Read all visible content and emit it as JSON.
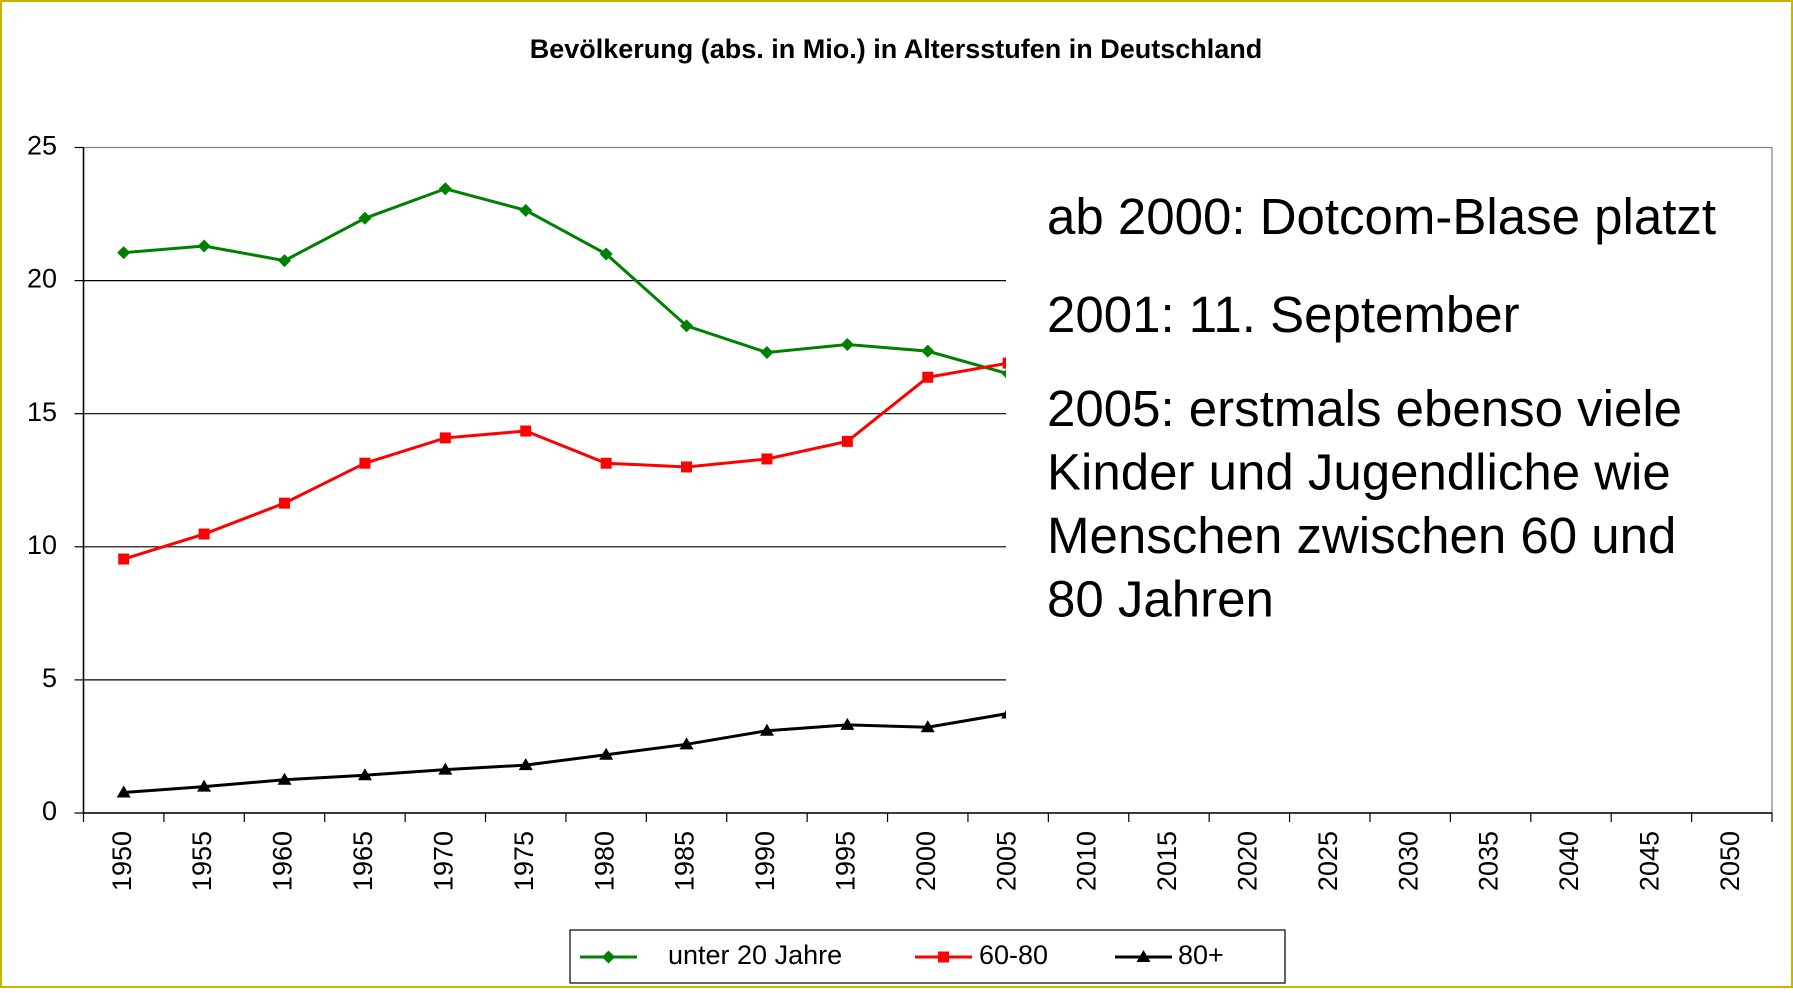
{
  "chart_data": {
    "type": "line",
    "title": "Bevölkerung (abs. in Mio.) in Altersstufen in Deutschland",
    "categories": [
      "1950",
      "1955",
      "1960",
      "1965",
      "1970",
      "1975",
      "1980",
      "1985",
      "1990",
      "1995",
      "2000",
      "2005",
      "2010",
      "2015",
      "2020",
      "2025",
      "2030",
      "2035",
      "2040",
      "2045",
      "2050"
    ],
    "series": [
      {
        "name": "unter 20 Jahre",
        "color": "#008000",
        "marker": "diamond",
        "values": [
          21.05,
          21.3,
          20.75,
          22.34,
          23.45,
          22.64,
          21.0,
          18.3,
          17.3,
          17.6,
          17.35,
          16.5,
          null,
          null,
          null,
          null,
          null,
          null,
          null,
          null,
          null
        ]
      },
      {
        "name": "60-80",
        "color": "#ff0000",
        "marker": "square",
        "values": [
          9.54,
          10.48,
          11.64,
          13.14,
          14.09,
          14.35,
          13.14,
          13.0,
          13.3,
          13.96,
          16.37,
          16.9,
          null,
          null,
          null,
          null,
          null,
          null,
          null,
          null,
          null
        ]
      },
      {
        "name": "80+",
        "color": "#000000",
        "marker": "triangle",
        "values": [
          0.77,
          0.99,
          1.25,
          1.42,
          1.63,
          1.8,
          2.19,
          2.58,
          3.09,
          3.31,
          3.22,
          3.74,
          null,
          null,
          null,
          null,
          null,
          null,
          null,
          null,
          null
        ]
      }
    ],
    "ylim": [
      0,
      25
    ],
    "yticks": [
      0,
      5,
      10,
      15,
      20,
      25
    ],
    "grid": true,
    "legend": "bottom",
    "annotations": [
      [
        "ab 2000: Dotcom-Blase platzt"
      ],
      [
        "2001: 11. September"
      ],
      [
        "2005: erstmals ebenso viele",
        "Kinder und Jugendliche wie",
        "Menschen zwischen 60 und",
        "80 Jahren"
      ]
    ]
  }
}
